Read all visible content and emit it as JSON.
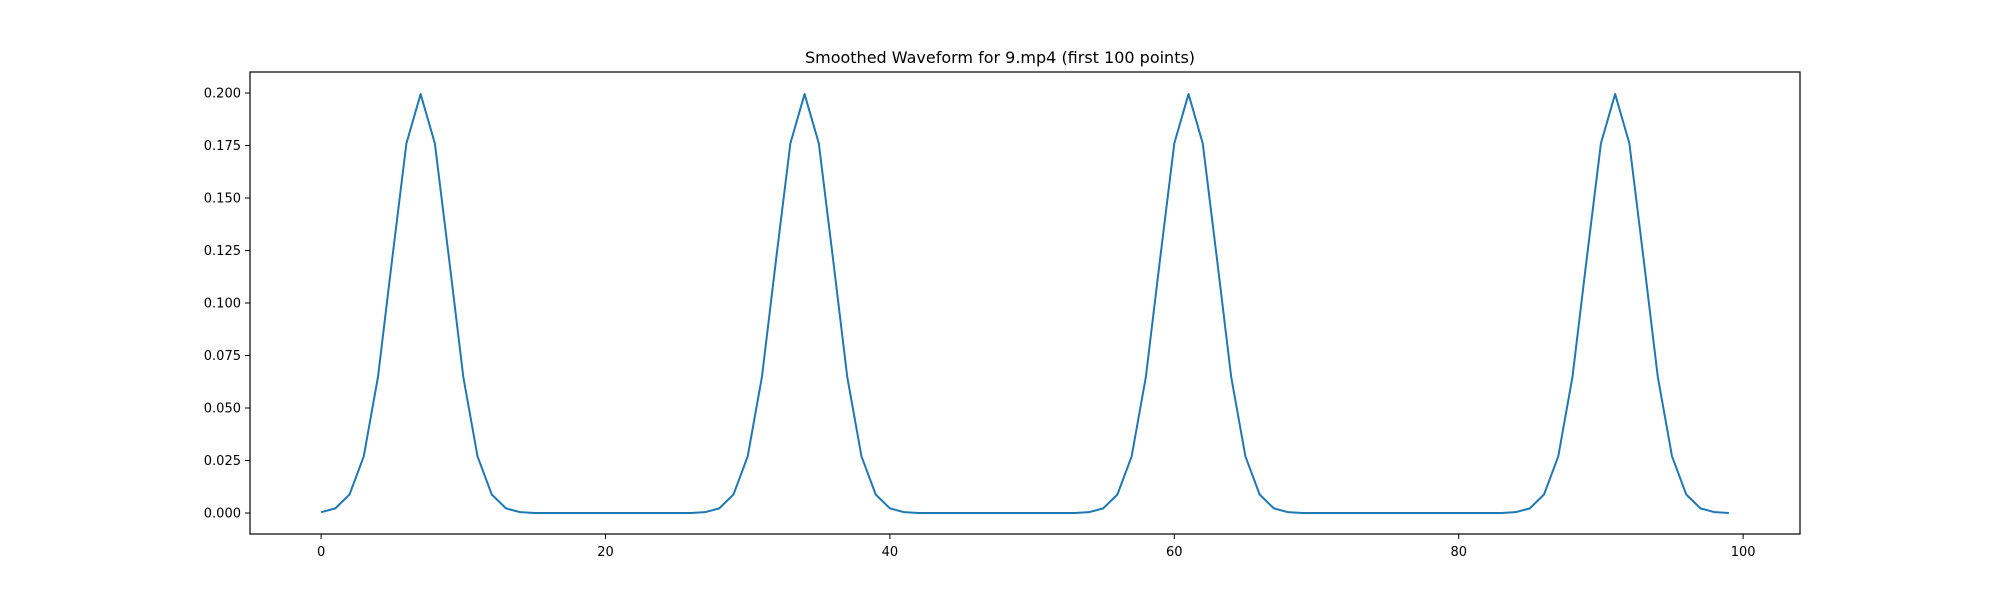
{
  "chart_data": {
    "type": "line",
    "title": "Smoothed Waveform for 9.mp4 (first 100 points)",
    "xlabel": "",
    "ylabel": "",
    "xlim": [
      -5,
      104
    ],
    "ylim": [
      -0.01,
      0.21
    ],
    "xticks": [
      0,
      20,
      40,
      60,
      80,
      100
    ],
    "yticks": [
      0.0,
      0.025,
      0.05,
      0.075,
      0.1,
      0.125,
      0.15,
      0.175,
      0.2
    ],
    "xtick_labels": [
      "0",
      "20",
      "40",
      "60",
      "80",
      "100"
    ],
    "ytick_labels": [
      "0.000",
      "0.025",
      "0.050",
      "0.075",
      "0.100",
      "0.125",
      "0.150",
      "0.175",
      "0.200"
    ],
    "grid": false,
    "line_color": "#1f77b4",
    "series": [
      {
        "x": [
          0,
          1,
          2,
          3,
          4,
          5,
          6,
          7,
          8,
          9,
          10,
          11,
          12,
          13,
          14,
          15,
          16,
          17,
          18,
          19,
          20,
          21,
          22,
          23,
          24,
          25,
          26,
          27,
          28,
          29,
          30,
          31,
          32,
          33,
          34,
          35,
          36,
          37,
          38,
          39,
          40,
          41,
          42,
          43,
          44,
          45,
          46,
          47,
          48,
          49,
          50,
          51,
          52,
          53,
          54,
          55,
          56,
          57,
          58,
          59,
          60,
          61,
          62,
          63,
          64,
          65,
          66,
          67,
          68,
          69,
          70,
          71,
          72,
          73,
          74,
          75,
          76,
          77,
          78,
          79,
          80,
          81,
          82,
          83,
          84,
          85,
          86,
          87,
          88,
          89,
          90,
          91,
          92,
          93,
          94,
          95,
          96,
          97,
          98,
          99
        ],
        "y": [
          0.0004,
          0.0022,
          0.0088,
          0.027,
          0.0648,
          0.121,
          0.176,
          0.1995,
          0.176,
          0.121,
          0.0648,
          0.027,
          0.0088,
          0.0022,
          0.0004,
          0.0,
          0.0,
          0.0,
          0.0,
          0.0,
          0.0,
          0.0,
          0.0,
          0.0,
          0.0,
          0.0,
          0.0,
          0.0004,
          0.0022,
          0.0088,
          0.027,
          0.0648,
          0.121,
          0.176,
          0.1995,
          0.176,
          0.121,
          0.0648,
          0.027,
          0.0088,
          0.0022,
          0.0004,
          0.0,
          0.0,
          0.0,
          0.0,
          0.0,
          0.0,
          0.0,
          0.0,
          0.0,
          0.0,
          0.0,
          0.0,
          0.0004,
          0.0022,
          0.0088,
          0.027,
          0.0648,
          0.121,
          0.176,
          0.1995,
          0.176,
          0.121,
          0.0648,
          0.027,
          0.0088,
          0.0022,
          0.0004,
          0.0,
          0.0,
          0.0,
          0.0,
          0.0,
          0.0,
          0.0,
          0.0,
          0.0,
          0.0,
          0.0,
          0.0,
          0.0,
          0.0,
          0.0,
          0.0004,
          0.0022,
          0.0088,
          0.027,
          0.0648,
          0.121,
          0.176,
          0.1995,
          0.176,
          0.121,
          0.0648,
          0.027,
          0.0088,
          0.0022,
          0.0004,
          0.0
        ]
      }
    ]
  }
}
